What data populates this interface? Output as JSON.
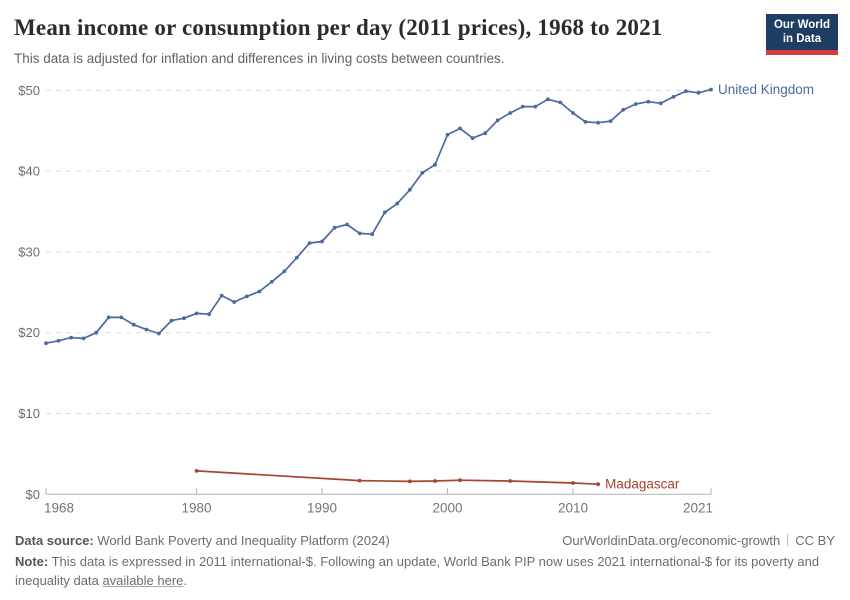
{
  "header": {
    "title": "Mean income or consumption per day (2011 prices), 1968 to 2021",
    "subtitle": "This data is adjusted for inflation and differences in living costs between countries.",
    "logo": {
      "line1": "Our World",
      "line2": "in Data",
      "bg_color": "#1d3d63",
      "accent_color": "#d8393e"
    }
  },
  "chart_data": {
    "type": "line",
    "title": "Mean income or consumption per day (2011 prices), 1968 to 2021",
    "xlabel": "",
    "ylabel": "",
    "xlim": [
      1968,
      2021
    ],
    "ylim": [
      0,
      50
    ],
    "grid": "horizontal-dashed",
    "legend_position": "line-end-labels",
    "x_ticks": [
      1968,
      1980,
      1990,
      2000,
      2010,
      2021
    ],
    "y_ticks": [
      {
        "value": 0,
        "label": "$0"
      },
      {
        "value": 10,
        "label": "$10"
      },
      {
        "value": 20,
        "label": "$20"
      },
      {
        "value": 30,
        "label": "$30"
      },
      {
        "value": 40,
        "label": "$40"
      },
      {
        "value": 50,
        "label": "$50"
      }
    ],
    "series": [
      {
        "name": "United Kingdom",
        "color": "#4c6a9c",
        "x": [
          1968,
          1969,
          1970,
          1971,
          1972,
          1973,
          1974,
          1975,
          1976,
          1977,
          1978,
          1979,
          1980,
          1981,
          1982,
          1983,
          1984,
          1985,
          1986,
          1987,
          1988,
          1989,
          1990,
          1991,
          1992,
          1993,
          1994,
          1995,
          1996,
          1997,
          1998,
          1999,
          2000,
          2001,
          2002,
          2003,
          2004,
          2005,
          2006,
          2007,
          2008,
          2009,
          2010,
          2011,
          2012,
          2013,
          2014,
          2015,
          2016,
          2017,
          2018,
          2019,
          2020,
          2021
        ],
        "values": [
          18.7,
          19.0,
          19.4,
          19.3,
          20.0,
          21.9,
          21.9,
          21.0,
          20.4,
          19.9,
          21.5,
          21.8,
          22.4,
          22.3,
          24.6,
          23.8,
          24.5,
          25.1,
          26.3,
          27.6,
          29.3,
          31.1,
          31.3,
          33.0,
          33.4,
          32.3,
          32.2,
          34.9,
          36.0,
          37.7,
          39.8,
          40.8,
          44.5,
          45.3,
          44.1,
          44.7,
          46.3,
          47.2,
          48.0,
          48.0,
          48.9,
          48.5,
          47.2,
          46.1,
          46.0,
          46.2,
          47.6,
          48.3,
          48.6,
          48.4,
          49.2,
          49.9,
          49.7,
          50.1
        ]
      },
      {
        "name": "Madagascar",
        "color": "#a8432c",
        "x": [
          1980,
          1993,
          1997,
          1999,
          2001,
          2005,
          2010,
          2012
        ],
        "values": [
          2.9,
          1.7,
          1.6,
          1.65,
          1.75,
          1.65,
          1.4,
          1.25
        ]
      }
    ]
  },
  "footer": {
    "source_label": "Data source:",
    "source_text": "World Bank Poverty and Inequality Platform (2024)",
    "site_link": "OurWorldinData.org/economic-growth",
    "license": "CC BY",
    "note_label": "Note:",
    "note_text_before": "This data is expressed in 2011 international-$. Following an update, World Bank PIP now uses 2021 international-$ for its poverty and inequality data ",
    "note_link": "available here",
    "note_suffix": "."
  }
}
